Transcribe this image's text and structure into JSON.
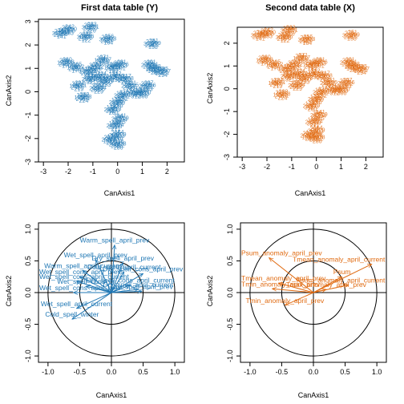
{
  "colors": {
    "y_series": "#1f77b4",
    "x_series": "#e06a10",
    "axes": "#000000"
  },
  "chart_data": [
    {
      "type": "scatter",
      "title": "First data table (Y)",
      "xlabel": "CanAxis1",
      "ylabel": "CanAxis2",
      "xlim": [
        -3.2,
        2.7
      ],
      "ylim": [
        -3.0,
        3.1
      ],
      "xticks": [
        -3,
        -2,
        -1,
        0,
        1,
        2
      ],
      "yticks": [
        -3,
        -2,
        -1,
        0,
        1,
        2,
        3
      ],
      "color": "#1f77b4",
      "point_labels": [
        "122",
        "133",
        "141",
        "158",
        "164",
        "170",
        "176",
        "188",
        "195",
        "201",
        "207",
        "213",
        "219",
        "224",
        "229",
        "233",
        "238",
        "242",
        "247",
        "251",
        "256",
        "260",
        "265",
        "271",
        "276",
        "281",
        "286",
        "290",
        "294",
        "299",
        "303",
        "308",
        "312",
        "317",
        "321",
        "326"
      ],
      "points": [
        {
          "x": -1.1,
          "y": 2.7
        },
        {
          "x": -1.3,
          "y": 2.3
        },
        {
          "x": -2.0,
          "y": 2.6
        },
        {
          "x": -2.3,
          "y": 2.45
        },
        {
          "x": 1.4,
          "y": 2.0
        },
        {
          "x": -0.4,
          "y": 2.2
        },
        {
          "x": -2.1,
          "y": 1.2
        },
        {
          "x": -1.7,
          "y": 1.0
        },
        {
          "x": -0.6,
          "y": 1.3
        },
        {
          "x": -0.2,
          "y": 1.0
        },
        {
          "x": 0.1,
          "y": 1.1
        },
        {
          "x": -0.9,
          "y": 1.0
        },
        {
          "x": -1.2,
          "y": 0.8
        },
        {
          "x": -1.6,
          "y": 0.2
        },
        {
          "x": -1.4,
          "y": -0.3
        },
        {
          "x": -0.8,
          "y": 0.1
        },
        {
          "x": -0.5,
          "y": 0.4
        },
        {
          "x": -0.1,
          "y": 0.6
        },
        {
          "x": 0.3,
          "y": 0.5
        },
        {
          "x": 0.5,
          "y": 0.2
        },
        {
          "x": 0.2,
          "y": -0.2
        },
        {
          "x": 0.0,
          "y": -0.5
        },
        {
          "x": -0.2,
          "y": -0.8
        },
        {
          "x": 0.1,
          "y": -1.2
        },
        {
          "x": -0.1,
          "y": -1.5
        },
        {
          "x": 0.0,
          "y": -1.9
        },
        {
          "x": -0.3,
          "y": -2.1
        },
        {
          "x": 0.0,
          "y": -2.3
        },
        {
          "x": 1.5,
          "y": 0.9
        },
        {
          "x": 1.8,
          "y": 0.8
        },
        {
          "x": 1.3,
          "y": 1.1
        },
        {
          "x": 1.2,
          "y": 0.2
        },
        {
          "x": 1.0,
          "y": -0.1
        },
        {
          "x": 0.7,
          "y": -0.1
        },
        {
          "x": -0.7,
          "y": 0.6
        },
        {
          "x": -1.1,
          "y": 0.5
        }
      ]
    },
    {
      "type": "scatter",
      "title": "Second data table (X)",
      "xlabel": "CanAxis1",
      "ylabel": "CanAxis2",
      "xlim": [
        -3.2,
        2.7
      ],
      "ylim": [
        -3.0,
        2.7
      ],
      "xticks": [
        -3,
        -2,
        -1,
        0,
        1,
        2
      ],
      "yticks": [
        -3,
        -2,
        -1,
        0,
        1,
        2
      ],
      "color": "#e06a10",
      "point_labels": [
        "122",
        "133",
        "141",
        "158",
        "164",
        "170",
        "176",
        "188",
        "195",
        "201",
        "207",
        "213",
        "219",
        "224",
        "229",
        "233",
        "238",
        "242",
        "247",
        "251",
        "256",
        "260",
        "265",
        "271",
        "276",
        "281",
        "286",
        "290",
        "294",
        "299",
        "303",
        "308",
        "312",
        "317",
        "321",
        "326"
      ],
      "points": [
        {
          "x": -1.1,
          "y": 2.5
        },
        {
          "x": -1.3,
          "y": 2.2
        },
        {
          "x": -2.0,
          "y": 2.4
        },
        {
          "x": -2.3,
          "y": 2.3
        },
        {
          "x": 1.4,
          "y": 2.3
        },
        {
          "x": -0.4,
          "y": 2.1
        },
        {
          "x": -2.1,
          "y": 1.2
        },
        {
          "x": -1.7,
          "y": 1.0
        },
        {
          "x": -0.6,
          "y": 1.3
        },
        {
          "x": -0.2,
          "y": 1.0
        },
        {
          "x": 0.1,
          "y": 1.1
        },
        {
          "x": -0.9,
          "y": 1.0
        },
        {
          "x": -1.2,
          "y": 0.8
        },
        {
          "x": -1.6,
          "y": 0.2
        },
        {
          "x": -1.4,
          "y": -0.3
        },
        {
          "x": -0.8,
          "y": 0.1
        },
        {
          "x": -0.5,
          "y": 0.4
        },
        {
          "x": -0.1,
          "y": 0.6
        },
        {
          "x": 0.3,
          "y": 0.5
        },
        {
          "x": 0.5,
          "y": 0.2
        },
        {
          "x": 0.2,
          "y": -0.2
        },
        {
          "x": 0.0,
          "y": -0.5
        },
        {
          "x": -0.2,
          "y": -0.8
        },
        {
          "x": 0.1,
          "y": -1.2
        },
        {
          "x": -0.1,
          "y": -1.5
        },
        {
          "x": 0.0,
          "y": -1.9
        },
        {
          "x": -0.3,
          "y": -2.1
        },
        {
          "x": 0.0,
          "y": -2.2
        },
        {
          "x": 1.5,
          "y": 0.9
        },
        {
          "x": 1.8,
          "y": 0.8
        },
        {
          "x": 1.3,
          "y": 1.1
        },
        {
          "x": 1.2,
          "y": 0.2
        },
        {
          "x": 1.0,
          "y": -0.1
        },
        {
          "x": 0.7,
          "y": -0.1
        },
        {
          "x": -0.7,
          "y": 0.6
        },
        {
          "x": -1.1,
          "y": 0.5
        }
      ]
    },
    {
      "type": "scatter",
      "title": "",
      "xlabel": "CanAxis1",
      "ylabel": "CanAxis2",
      "xlim": [
        -1.15,
        1.15
      ],
      "ylim": [
        -1.1,
        1.1
      ],
      "xticks": [
        -1.0,
        -0.5,
        0.0,
        0.5,
        1.0
      ],
      "yticks": [
        -1.0,
        -0.5,
        0.0,
        0.5,
        1.0
      ],
      "tick_labels_x": [
        "-1.0",
        "-0.5",
        "0.0",
        "0.5",
        "1.0"
      ],
      "tick_labels_y": [
        "-1.0",
        "-0.5",
        "0.0",
        "0.5",
        "1.0"
      ],
      "circle_radii": [
        1.0,
        0.5
      ],
      "color": "#1f77b4",
      "vectors": [
        {
          "label": "Warm_spell_april_prev",
          "x": 0.05,
          "y": 0.75
        },
        {
          "label": "Wet_spell_april_prev",
          "x": -0.25,
          "y": 0.52
        },
        {
          "label": "Dry_spell_april_prev",
          "x": 0.18,
          "y": 0.47
        },
        {
          "label": "Warm_spell_april_current",
          "x": -0.45,
          "y": 0.35
        },
        {
          "label": "Cold_spell_april_current",
          "x": 0.2,
          "y": 0.33
        },
        {
          "label": "Wet_spell_cons_april_prev",
          "x": -0.5,
          "y": 0.25
        },
        {
          "label": "Dry_spell_cons_april_prev",
          "x": 0.5,
          "y": 0.3
        },
        {
          "label": "Wet_spell_cons_april_current",
          "x": -0.55,
          "y": 0.18
        },
        {
          "label": "Dry_spell_april_current",
          "x": 0.42,
          "y": 0.05
        },
        {
          "label": "Wet_spell_cons_pr",
          "x": -0.4,
          "y": 0.1
        },
        {
          "label": "Dry_spell_cons_april_current",
          "x": 0.3,
          "y": 0.12
        },
        {
          "label": "Wet_spell_cons_april_prev",
          "x": -0.6,
          "y": 0.0
        },
        {
          "label": "Dry_spell_april_prev",
          "x": 0.48,
          "y": 0.02
        },
        {
          "label": "Wet_spell_april_current",
          "x": -0.55,
          "y": -0.25
        },
        {
          "label": "Cold_spell_winter",
          "x": -0.62,
          "y": -0.42
        }
      ]
    },
    {
      "type": "scatter",
      "title": "",
      "xlabel": "CanAxis1",
      "ylabel": "CanAxis2",
      "xlim": [
        -1.15,
        1.15
      ],
      "ylim": [
        -1.1,
        1.1
      ],
      "xticks": [
        -1.0,
        -0.5,
        0.0,
        0.5,
        1.0
      ],
      "yticks": [
        -1.0,
        -0.5,
        0.0,
        0.5,
        1.0
      ],
      "tick_labels_x": [
        "-1.0",
        "-0.5",
        "0.0",
        "0.5",
        "1.0"
      ],
      "tick_labels_y": [
        "-1.0",
        "-0.5",
        "0.0",
        "0.5",
        "1.0"
      ],
      "circle_radii": [
        1.0,
        0.5
      ],
      "color": "#e06a10",
      "vectors": [
        {
          "label": "Psum_anomaly_april_prev",
          "x": -0.7,
          "y": 0.55
        },
        {
          "label": "Tmean_anomaly_april_current",
          "x": 0.92,
          "y": 0.45
        },
        {
          "label": "Psum",
          "x": 0.45,
          "y": 0.25
        },
        {
          "label": "Tmean_anomaly_april_prev",
          "x": -0.55,
          "y": 0.15
        },
        {
          "label": "Psum_anomaly_april_current",
          "x": 0.55,
          "y": 0.12
        },
        {
          "label": "Tmin_anomaly_april_prev",
          "x": -0.65,
          "y": 0.06
        },
        {
          "label": "Tmax_anomaly_april_prev",
          "x": 0.2,
          "y": 0.05
        },
        {
          "label": "Tmin_anomaly_april_prev",
          "x": -0.45,
          "y": -0.2
        }
      ]
    }
  ]
}
